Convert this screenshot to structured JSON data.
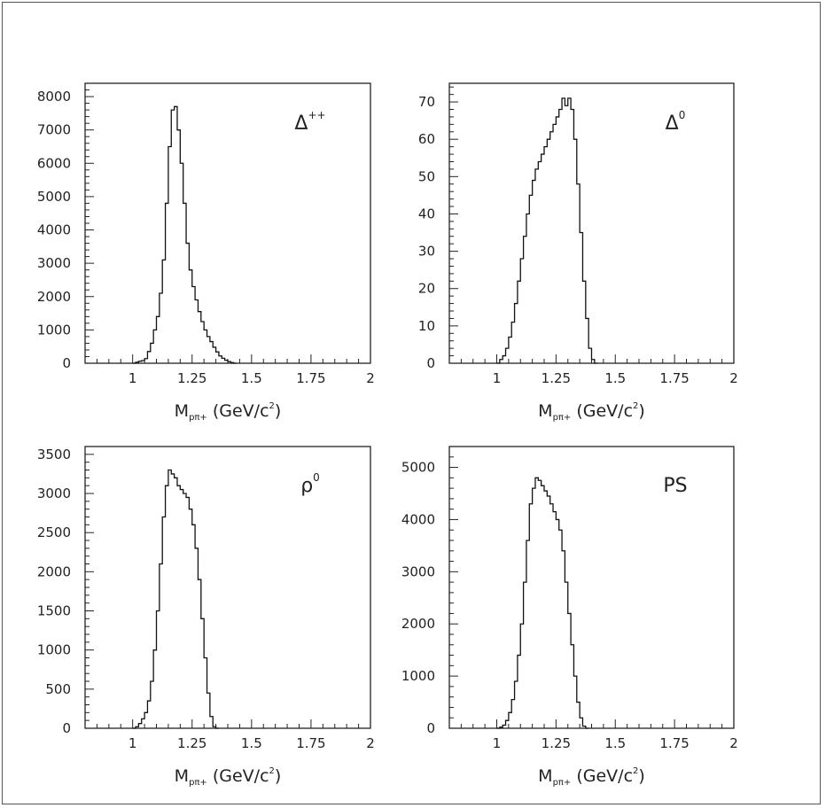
{
  "chart_data": [
    {
      "type": "histogram",
      "label": "Δ",
      "label_sup": "++",
      "xlabel_main": "M",
      "xlabel_sub": "pπ+",
      "xlabel_unit": "(GeV/c",
      "xlabel_exp": "2",
      "xlabel_close": ")",
      "xlim": [
        0.8,
        2.0
      ],
      "ylim": [
        0,
        8400
      ],
      "xticks": [
        1,
        1.25,
        1.5,
        1.75,
        2
      ],
      "xtick_labels": [
        "1",
        "1.25",
        "1.5",
        "1.75",
        "2"
      ],
      "yticks": [
        0,
        1000,
        2000,
        3000,
        4000,
        5000,
        6000,
        7000,
        8000
      ],
      "ytick_labels": [
        "0",
        "1000",
        "2000",
        "3000",
        "4000",
        "5000",
        "6000",
        "7000",
        "8000"
      ],
      "bin_start": 1.0,
      "bin_width": 0.0125,
      "values": [
        0,
        30,
        60,
        80,
        140,
        350,
        600,
        1000,
        1400,
        2100,
        3100,
        4800,
        6500,
        7600,
        7700,
        7000,
        6000,
        4800,
        3600,
        2800,
        2300,
        1900,
        1550,
        1250,
        1000,
        800,
        650,
        480,
        340,
        220,
        150,
        90,
        50,
        20,
        0
      ]
    },
    {
      "type": "histogram",
      "label": "Δ",
      "label_sup": "0",
      "xlabel_main": "M",
      "xlabel_sub": "pπ+",
      "xlabel_unit": "(GeV/c",
      "xlabel_exp": "2",
      "xlabel_close": ")",
      "xlim": [
        0.8,
        2.0
      ],
      "ylim": [
        0,
        75
      ],
      "xticks": [
        1,
        1.25,
        1.5,
        1.75,
        2
      ],
      "xtick_labels": [
        "1",
        "1.25",
        "1.5",
        "1.75",
        "2"
      ],
      "yticks": [
        0,
        10,
        20,
        30,
        40,
        50,
        60,
        70
      ],
      "ytick_labels": [
        "0",
        "10",
        "20",
        "30",
        "40",
        "50",
        "60",
        "70"
      ],
      "bin_start": 1.0,
      "bin_width": 0.0125,
      "values": [
        0,
        1,
        2,
        4,
        7,
        11,
        16,
        22,
        28,
        34,
        40,
        45,
        49,
        52,
        54,
        56,
        58,
        60,
        62,
        64,
        66,
        68,
        71,
        69,
        71,
        68,
        60,
        48,
        35,
        22,
        12,
        4,
        1,
        0
      ]
    },
    {
      "type": "histogram",
      "label": "ρ",
      "label_sup": "0",
      "xlabel_main": "M",
      "xlabel_sub": "pπ+",
      "xlabel_unit": "(GeV/c",
      "xlabel_exp": "2",
      "xlabel_close": ")",
      "xlim": [
        0.8,
        2.0
      ],
      "ylim": [
        0,
        3600
      ],
      "xticks": [
        1,
        1.25,
        1.5,
        1.75,
        2
      ],
      "xtick_labels": [
        "1",
        "1.25",
        "1.5",
        "1.75",
        "2"
      ],
      "yticks": [
        0,
        500,
        1000,
        1500,
        2000,
        2500,
        3000,
        3500
      ],
      "ytick_labels": [
        "0",
        "500",
        "1000",
        "1500",
        "2000",
        "2500",
        "3000",
        "3500"
      ],
      "bin_start": 1.0,
      "bin_width": 0.0125,
      "values": [
        0,
        20,
        60,
        120,
        200,
        350,
        600,
        1000,
        1500,
        2100,
        2700,
        3100,
        3300,
        3250,
        3200,
        3100,
        3050,
        3000,
        2950,
        2800,
        2600,
        2300,
        1900,
        1400,
        900,
        450,
        150,
        20,
        0
      ]
    },
    {
      "type": "histogram",
      "label": "PS",
      "label_sup": "",
      "xlabel_main": "M",
      "xlabel_sub": "pπ+",
      "xlabel_unit": "(GeV/c",
      "xlabel_exp": "2",
      "xlabel_close": ")",
      "xlim": [
        0.8,
        2.0
      ],
      "ylim": [
        0,
        5400
      ],
      "xticks": [
        1,
        1.25,
        1.5,
        1.75,
        2
      ],
      "xtick_labels": [
        "1",
        "1.25",
        "1.5",
        "1.75",
        "2"
      ],
      "yticks": [
        0,
        1000,
        2000,
        3000,
        4000,
        5000
      ],
      "ytick_labels": [
        "0",
        "1000",
        "2000",
        "3000",
        "4000",
        "5000"
      ],
      "bin_start": 1.0,
      "bin_width": 0.0125,
      "values": [
        0,
        20,
        60,
        150,
        300,
        550,
        900,
        1400,
        2000,
        2800,
        3600,
        4300,
        4600,
        4800,
        4750,
        4650,
        4550,
        4450,
        4300,
        4150,
        4000,
        3800,
        3400,
        2800,
        2200,
        1600,
        1000,
        500,
        200,
        40,
        0
      ]
    }
  ]
}
